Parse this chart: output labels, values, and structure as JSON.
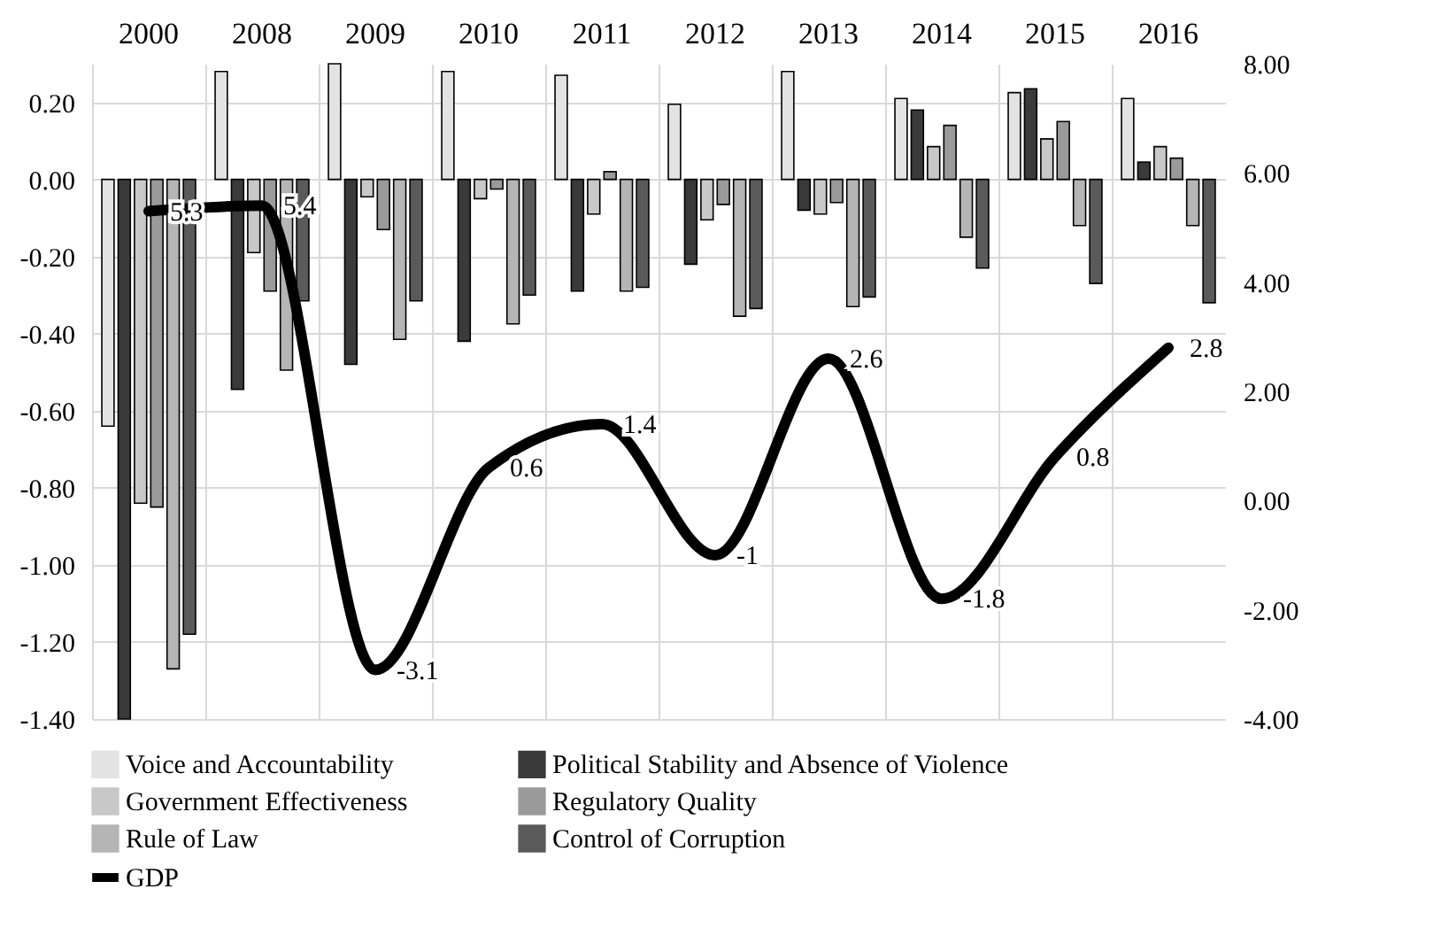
{
  "chart_data": {
    "type": "bar",
    "categories": [
      "2000",
      "2008",
      "2009",
      "2010",
      "2011",
      "2012",
      "2013",
      "2014",
      "2015",
      "2016"
    ],
    "series": [
      {
        "name": "Voice and Accountability",
        "color": "#e3e3e3",
        "values": [
          -0.64,
          0.28,
          0.3,
          0.28,
          0.27,
          0.195,
          0.28,
          0.21,
          0.225,
          0.21
        ]
      },
      {
        "name": "Political Stability and Absence of Violence",
        "color": "#3a3a3a",
        "values": [
          -1.4,
          -0.545,
          -0.48,
          -0.42,
          -0.29,
          -0.22,
          -0.08,
          0.18,
          0.235,
          0.045
        ]
      },
      {
        "name": "Government Effectiveness",
        "color": "#c8c8c8",
        "values": [
          -0.84,
          -0.19,
          -0.045,
          -0.05,
          -0.09,
          -0.105,
          -0.09,
          0.085,
          0.105,
          0.085
        ]
      },
      {
        "name": "Regulatory Quality",
        "color": "#9a9a9a",
        "values": [
          -0.85,
          -0.29,
          -0.13,
          -0.025,
          0.02,
          -0.065,
          -0.06,
          0.14,
          0.15,
          0.055
        ]
      },
      {
        "name": "Rule of Law",
        "color": "#b5b5b5",
        "values": [
          -1.27,
          -0.495,
          -0.415,
          -0.375,
          -0.29,
          -0.355,
          -0.33,
          -0.15,
          -0.12,
          -0.12
        ]
      },
      {
        "name": "Control of Corruption",
        "color": "#5a5a5a",
        "values": [
          -1.18,
          -0.315,
          -0.315,
          -0.3,
          -0.28,
          -0.335,
          -0.305,
          -0.23,
          -0.27,
          -0.32
        ]
      },
      {
        "name": "GDP",
        "type": "line",
        "axis": "y2",
        "color": "#000000",
        "values": [
          5.3,
          5.4,
          -3.1,
          0.6,
          1.4,
          -1,
          2.6,
          -1.8,
          0.8,
          2.8
        ],
        "value_labels": [
          "5.3",
          "5.4",
          "-3.1",
          "0.6",
          "1.4",
          "-1",
          "2.6",
          "-1.8",
          "0.8",
          "2.8"
        ]
      }
    ],
    "ylim": [
      -1.4,
      0.3
    ],
    "yticks": [
      {
        "value": -1.4,
        "label": "-1.40"
      },
      {
        "value": -1.2,
        "label": "-1.20"
      },
      {
        "value": -1,
        "label": "-1.00"
      },
      {
        "value": -0.8,
        "label": "-0.80"
      },
      {
        "value": -0.6,
        "label": "-0.60"
      },
      {
        "value": -0.4,
        "label": "-0.40"
      },
      {
        "value": -0.2,
        "label": "-0.20"
      },
      {
        "value": 0,
        "label": "0.00"
      },
      {
        "value": 0.2,
        "label": "0.20"
      }
    ],
    "y2lim": [
      -4,
      8
    ],
    "y2ticks": [
      {
        "value": -4,
        "label": "-4.00"
      },
      {
        "value": -2,
        "label": "-2.00"
      },
      {
        "value": 0,
        "label": "0.00"
      },
      {
        "value": 2,
        "label": "2.00"
      },
      {
        "value": 4,
        "label": "4.00"
      },
      {
        "value": 6,
        "label": "6.00"
      },
      {
        "value": 8,
        "label": "8.00"
      }
    ],
    "grid": true,
    "legend": "bottom"
  }
}
